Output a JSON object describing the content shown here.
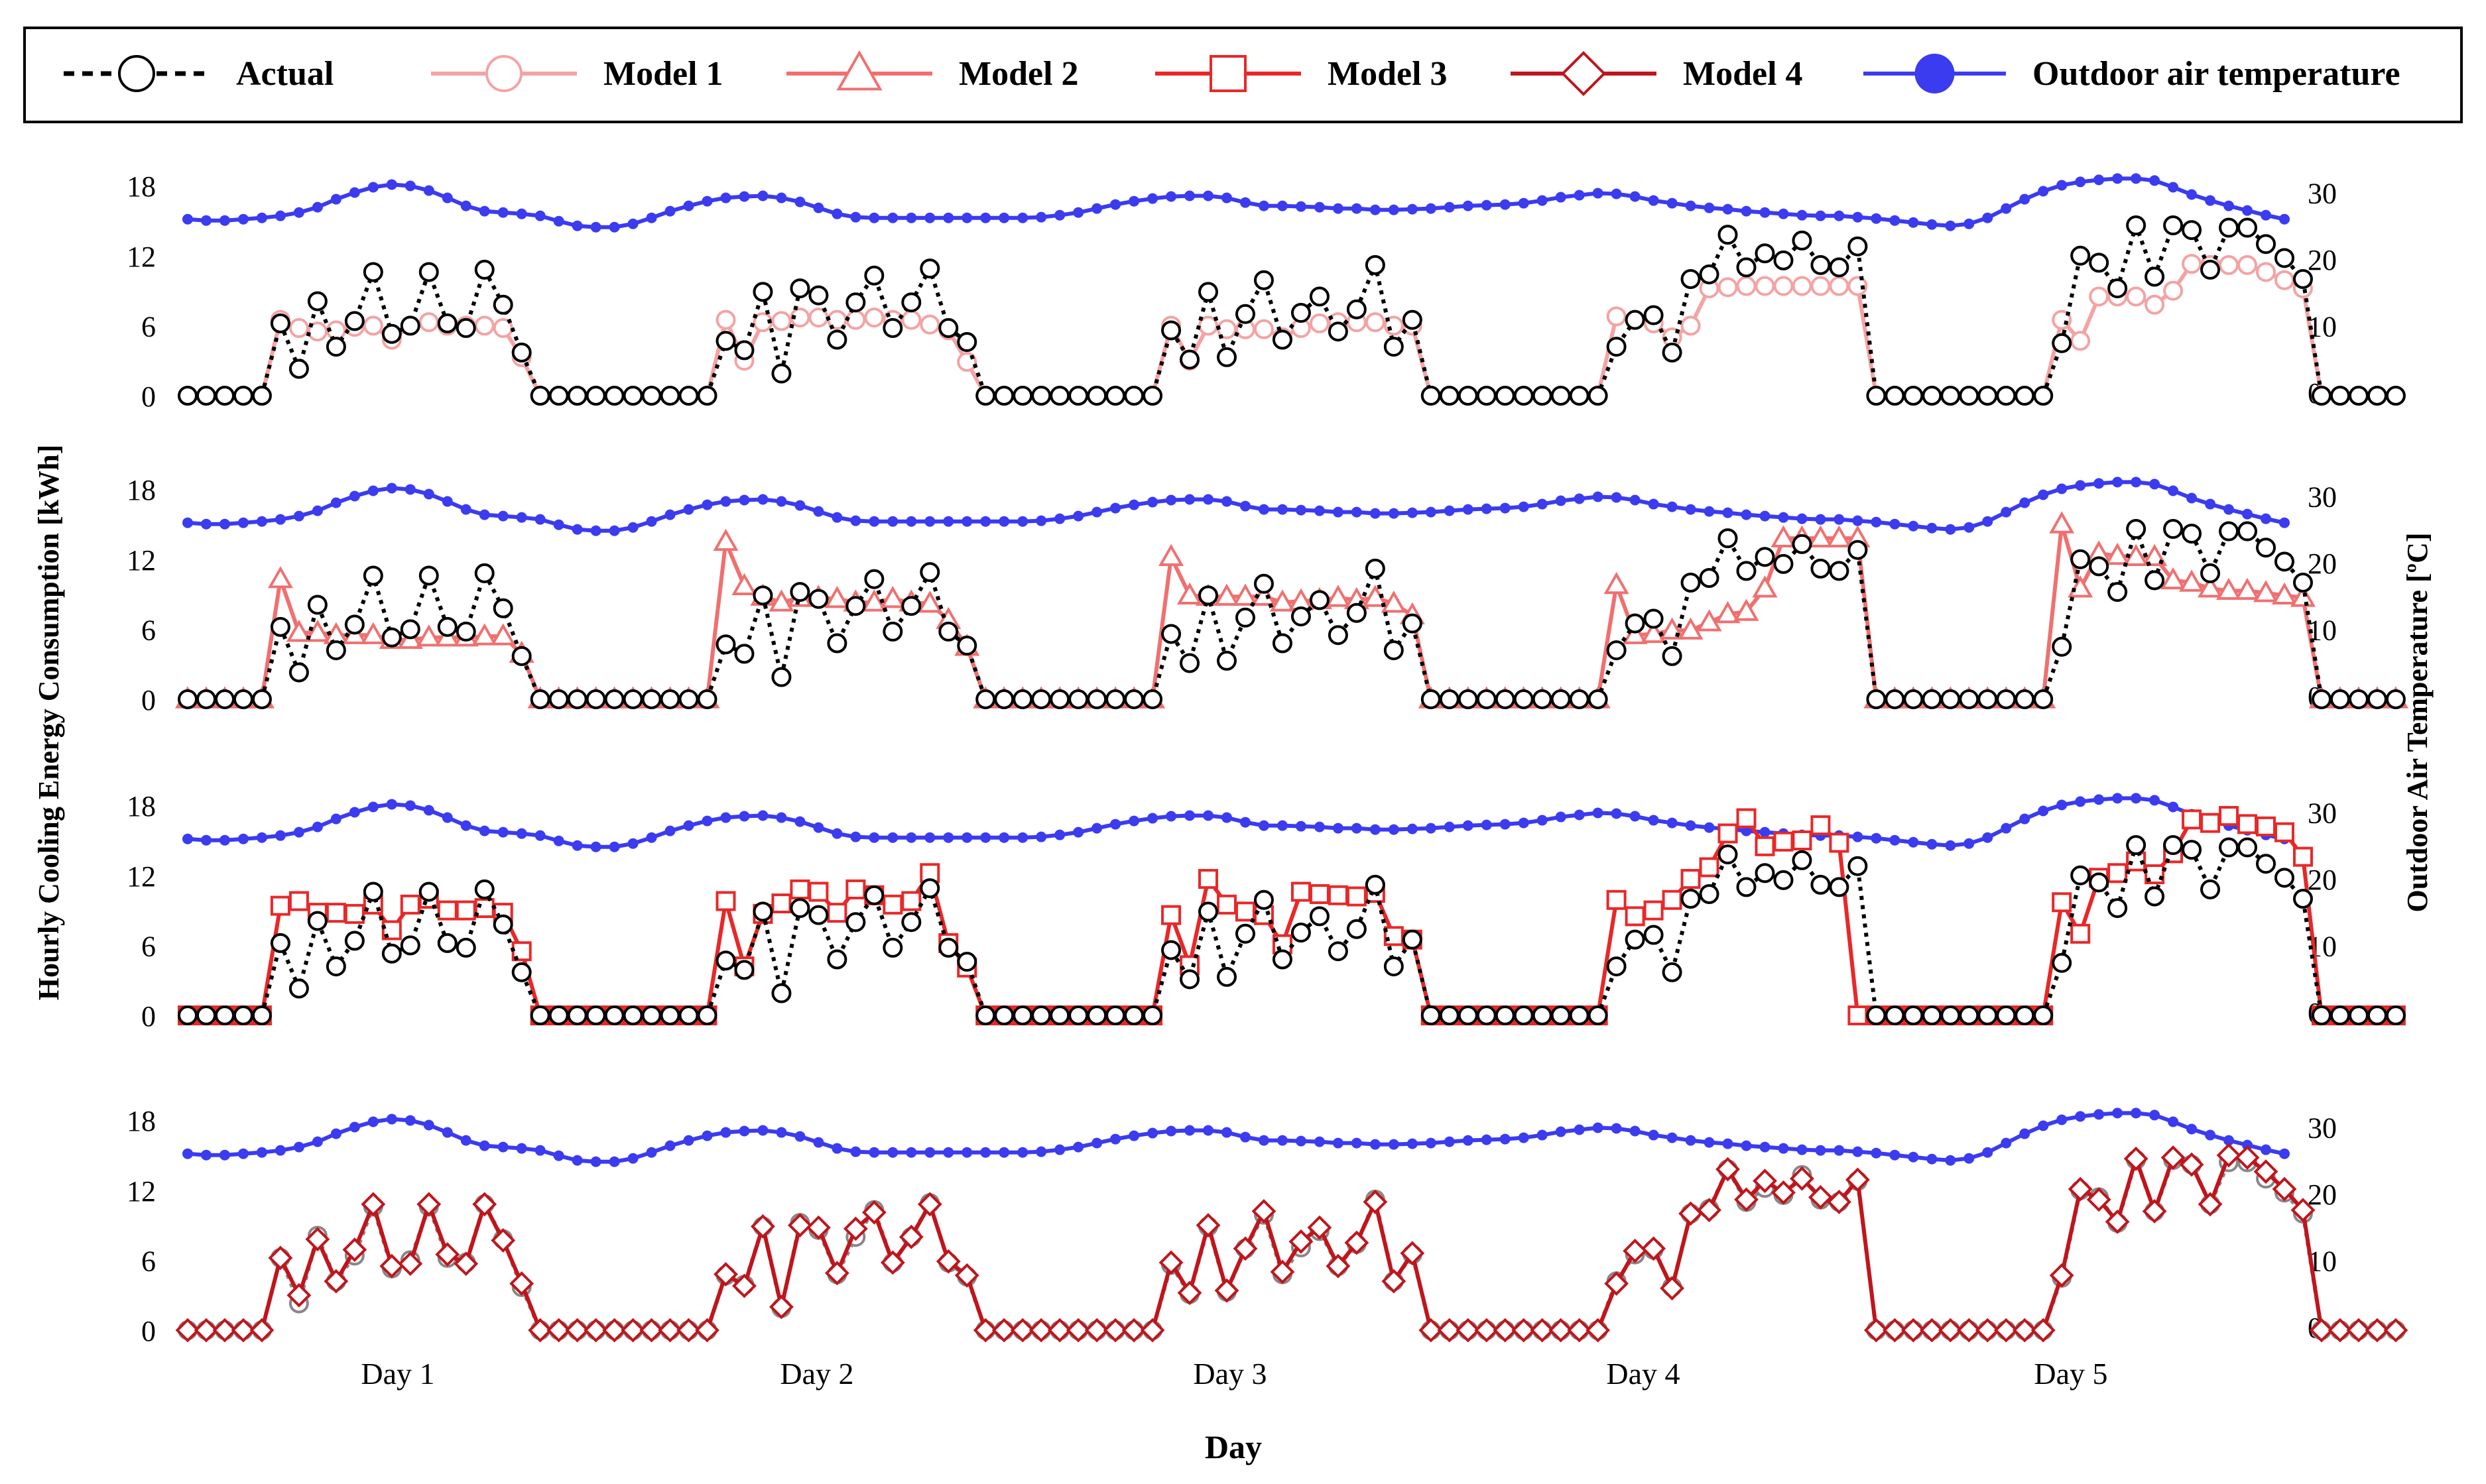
{
  "chart_data": {
    "type": "line",
    "xlabel": "Day",
    "ylabel": "Hourly Cooling Energy Consumption [kWh]",
    "y2label": "Outdoor Air Temperature [ºC]",
    "x_tick_labels": [
      "Day 1",
      "Day 2",
      "Day 3",
      "Day 4",
      "Day 5"
    ],
    "hours_per_day": 24,
    "yticks": [
      0,
      6,
      12,
      18
    ],
    "y2ticks": [
      0,
      10,
      20,
      30
    ],
    "ylim": [
      0,
      20
    ],
    "y2lim": [
      0,
      33
    ],
    "legend_position": "top",
    "legend": [
      {
        "label": "Actual",
        "color": "#000000",
        "marker": "circle",
        "dash": true
      },
      {
        "label": "Model 1",
        "color": "#f4a3a3",
        "marker": "circle",
        "dash": false
      },
      {
        "label": "Model 2",
        "color": "#f07070",
        "marker": "triangle",
        "dash": false
      },
      {
        "label": "Model 3",
        "color": "#e82828",
        "marker": "square",
        "dash": false
      },
      {
        "label": "Model 4",
        "color": "#c0151c",
        "marker": "diamond",
        "dash": false
      },
      {
        "label": "Outdoor air temperature",
        "color": "#3b3bf0",
        "marker": "dot",
        "dash": false
      }
    ],
    "outdoor_air_temperature": [
      26,
      25.8,
      25.8,
      26,
      26.2,
      26.5,
      27,
      27.8,
      29,
      30,
      30.8,
      31.2,
      31,
      30.3,
      29.2,
      28,
      27.2,
      27,
      26.8,
      26.5,
      25.7,
      25,
      24.8,
      24.8,
      25.3,
      26.2,
      27.2,
      28,
      28.7,
      29.2,
      29.4,
      29.5,
      29.2,
      28.6,
      27.7,
      26.8,
      26.3,
      26.2,
      26.2,
      26.2,
      26.2,
      26.2,
      26.2,
      26.2,
      26.2,
      26.2,
      26.3,
      26.6,
      27,
      27.6,
      28.2,
      28.7,
      29.1,
      29.4,
      29.5,
      29.5,
      29.2,
      28.5,
      28,
      28,
      27.9,
      27.8,
      27.6,
      27.6,
      27.4,
      27.4,
      27.5,
      27.6,
      27.8,
      28,
      28.1,
      28.2,
      28.4,
      28.8,
      29.3,
      29.6,
      29.9,
      29.8,
      29.4,
      28.8,
      28.4,
      28,
      27.7,
      27.5,
      27.2,
      27,
      26.8,
      26.6,
      26.5,
      26.5,
      26.3,
      26.1,
      25.8,
      25.5,
      25.2,
      25,
      25.3,
      26.2,
      27.6,
      29,
      30.2,
      31.1,
      31.6,
      31.9,
      32.1,
      32.1,
      31.8,
      30.8,
      29.7,
      28.8,
      28,
      27.3,
      26.6,
      26
    ],
    "series": [
      {
        "name": "Actual",
        "values": [
          0,
          0,
          0,
          0,
          0,
          6.2,
          2.3,
          8.1,
          4.2,
          6.4,
          10.6,
          5.3,
          6.0,
          10.6,
          6.2,
          5.8,
          10.8,
          7.8,
          3.7,
          0,
          0,
          0,
          0,
          0,
          0,
          0,
          0,
          0,
          0,
          4.7,
          3.9,
          8.9,
          1.9,
          9.2,
          8.6,
          4.8,
          8.0,
          10.3,
          5.8,
          8.0,
          10.9,
          5.8,
          4.6,
          0,
          0,
          0,
          0,
          0,
          0,
          0,
          0,
          0,
          0,
          5.6,
          3.1,
          8.9,
          3.3,
          7.0,
          9.9,
          4.8,
          7.1,
          8.5,
          5.5,
          7.4,
          11.2,
          4.2,
          6.5,
          0,
          0,
          0,
          0,
          0,
          0,
          0,
          0,
          0,
          0,
          4.2,
          6.5,
          6.9,
          3.7,
          10.0,
          10.4,
          13.8,
          11.0,
          12.2,
          11.6,
          13.3,
          11.2,
          11.0,
          12.8,
          0,
          0,
          0,
          0,
          0,
          0,
          0,
          0,
          0,
          0,
          4.5,
          12.0,
          11.4,
          9.2,
          14.6,
          10.2,
          14.6,
          14.2,
          10.8,
          14.4,
          14.4,
          13.0,
          11.8,
          10.0,
          0,
          0,
          0,
          0,
          0
        ]
      },
      {
        "name": "Model 1",
        "values": [
          0,
          0,
          0,
          0,
          0,
          6.5,
          5.8,
          5.5,
          5.6,
          5.9,
          6.0,
          4.8,
          6.0,
          6.3,
          6.0,
          6.0,
          6.0,
          5.8,
          3.3,
          0,
          0,
          0,
          0,
          0,
          0,
          0,
          0,
          0,
          0,
          6.5,
          3.0,
          6.3,
          6.4,
          6.7,
          6.7,
          6.5,
          6.5,
          6.7,
          6.5,
          6.5,
          6.1,
          5.6,
          2.9,
          0,
          0,
          0,
          0,
          0,
          0,
          0,
          0,
          0,
          0,
          6.0,
          3.0,
          6.0,
          5.7,
          5.7,
          5.7,
          5.0,
          5.8,
          6.2,
          6.3,
          6.3,
          6.3,
          6.0,
          6.0,
          0,
          0,
          0,
          0,
          0,
          0,
          0,
          0,
          0,
          0,
          6.8,
          6.5,
          6.2,
          5.0,
          6.0,
          9.2,
          9.3,
          9.4,
          9.4,
          9.4,
          9.4,
          9.4,
          9.4,
          9.4,
          0,
          0,
          0,
          0,
          0,
          0,
          0,
          0,
          0,
          0,
          6.5,
          4.7,
          8.5,
          8.5,
          8.5,
          7.8,
          9.0,
          11.3,
          11.2,
          11.2,
          11.2,
          10.6,
          9.9,
          9.2,
          0,
          0,
          0,
          0,
          0
        ]
      },
      {
        "name": "Model 2",
        "values": [
          0,
          0,
          0,
          0,
          0,
          10.3,
          5.7,
          5.7,
          5.5,
          5.5,
          5.5,
          5.1,
          5.1,
          5.3,
          5.3,
          5.3,
          5.4,
          5.4,
          3.9,
          0,
          0,
          0,
          0,
          0,
          0,
          0,
          0,
          0,
          0,
          13.5,
          9.7,
          8.8,
          8.3,
          8.7,
          8.7,
          8.6,
          8.3,
          8.3,
          8.6,
          8.3,
          8.2,
          6.8,
          4.5,
          0,
          0,
          0,
          0,
          0,
          0,
          0,
          0,
          0,
          0,
          12.2,
          8.9,
          8.8,
          8.8,
          8.8,
          8.8,
          8.3,
          8.4,
          8.5,
          8.7,
          8.5,
          8.7,
          8.2,
          7.2,
          0,
          0,
          0,
          0,
          0,
          0,
          0,
          0,
          0,
          0,
          9.8,
          5.5,
          5.6,
          5.9,
          5.9,
          6.6,
          7.3,
          7.5,
          9.5,
          13.8,
          13.8,
          13.8,
          13.8,
          13.8,
          0,
          0,
          0,
          0,
          0,
          0,
          0,
          0,
          0,
          0,
          15.0,
          9.5,
          12.5,
          12.3,
          12.2,
          12.2,
          10.2,
          10.0,
          9.5,
          9.3,
          9.3,
          9.1,
          8.9,
          8.7,
          0,
          0,
          0,
          0,
          0
        ]
      },
      {
        "name": "Model 3",
        "values": [
          0,
          0,
          0,
          0,
          0,
          9.4,
          9.8,
          8.8,
          8.8,
          8.7,
          9.5,
          7.3,
          9.5,
          10.0,
          9.0,
          9.0,
          9.2,
          8.8,
          5.5,
          0,
          0,
          0,
          0,
          0,
          0,
          0,
          0,
          0,
          0,
          9.8,
          4.2,
          8.7,
          9.6,
          10.8,
          10.6,
          8.8,
          10.8,
          10.3,
          9.5,
          9.8,
          12.2,
          6.2,
          4.1,
          0,
          0,
          0,
          0,
          0,
          0,
          0,
          0,
          0,
          0,
          8.6,
          4.3,
          11.7,
          9.5,
          8.9,
          8.6,
          6.1,
          10.6,
          10.4,
          10.3,
          10.2,
          10.5,
          6.8,
          6.5,
          0,
          0,
          0,
          0,
          0,
          0,
          0,
          0,
          0,
          0,
          9.9,
          8.5,
          9.0,
          9.9,
          11.7,
          12.7,
          15.6,
          16.9,
          14.5,
          14.9,
          15.0,
          16.3,
          14.8,
          0,
          0,
          0,
          0,
          0,
          0,
          0,
          0,
          0,
          0,
          0,
          9.7,
          7.0,
          11.8,
          12.2,
          13.2,
          12.1,
          13.9,
          16.8,
          16.5,
          17.1,
          16.4,
          16.2,
          15.7,
          13.6,
          0,
          0,
          0,
          0,
          0
        ]
      },
      {
        "name": "Model 4",
        "values": [
          0,
          0,
          0,
          0,
          0,
          6.2,
          3.0,
          7.8,
          4.2,
          6.9,
          10.8,
          5.5,
          5.7,
          10.8,
          6.5,
          5.7,
          10.8,
          7.7,
          4.0,
          0,
          0,
          0,
          0,
          0,
          0,
          0,
          0,
          0,
          0,
          4.8,
          3.8,
          8.9,
          2.0,
          9.0,
          8.8,
          4.9,
          8.7,
          10.1,
          5.8,
          8.0,
          10.8,
          5.9,
          4.7,
          0,
          0,
          0,
          0,
          0,
          0,
          0,
          0,
          0,
          0,
          5.8,
          3.2,
          9.0,
          3.4,
          7.0,
          10.2,
          5.0,
          7.6,
          8.8,
          5.5,
          7.5,
          11.0,
          4.2,
          6.6,
          0,
          0,
          0,
          0,
          0,
          0,
          0,
          0,
          0,
          0,
          4.0,
          6.8,
          7.0,
          3.6,
          10.0,
          10.3,
          13.8,
          11.2,
          12.8,
          11.8,
          13.0,
          11.4,
          11.0,
          12.9,
          0,
          0,
          0,
          0,
          0,
          0,
          0,
          0,
          0,
          0,
          4.7,
          12.1,
          11.2,
          9.3,
          14.7,
          10.2,
          14.8,
          14.2,
          10.8,
          15.0,
          14.8,
          13.6,
          12.1,
          10.3,
          0,
          0,
          0,
          0,
          0
        ]
      }
    ],
    "panels": [
      {
        "series": [
          "Actual",
          "Model 1"
        ]
      },
      {
        "series": [
          "Actual",
          "Model 2"
        ]
      },
      {
        "series": [
          "Actual",
          "Model 3"
        ]
      },
      {
        "series": [
          "Actual",
          "Model 4"
        ]
      }
    ]
  }
}
